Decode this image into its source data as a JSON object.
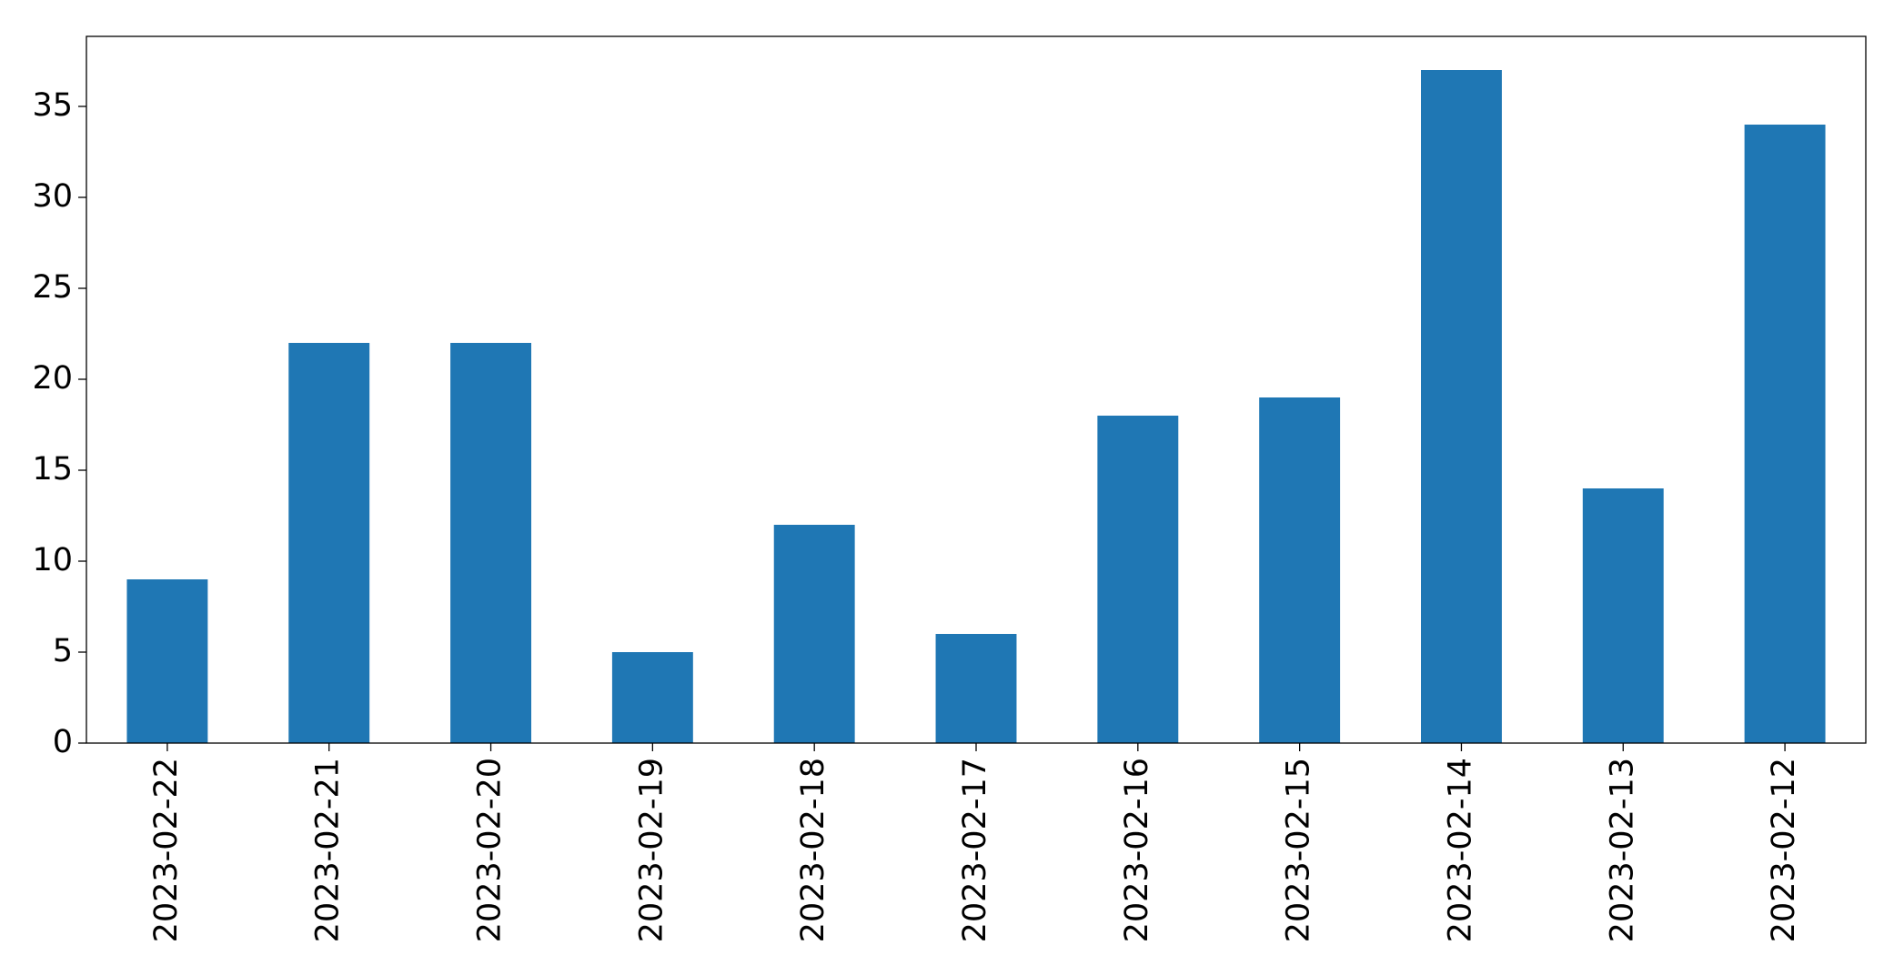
{
  "chart_data": {
    "type": "bar",
    "categories": [
      "2023-02-22",
      "2023-02-21",
      "2023-02-20",
      "2023-02-19",
      "2023-02-18",
      "2023-02-17",
      "2023-02-16",
      "2023-02-15",
      "2023-02-14",
      "2023-02-13",
      "2023-02-12"
    ],
    "values": [
      9,
      22,
      22,
      5,
      12,
      6,
      18,
      19,
      37,
      14,
      34
    ],
    "color": "#1f77b4",
    "ylim": [
      0,
      38.85
    ],
    "yticks": [
      0,
      5,
      10,
      15,
      20,
      25,
      30,
      35
    ],
    "grid": false
  }
}
